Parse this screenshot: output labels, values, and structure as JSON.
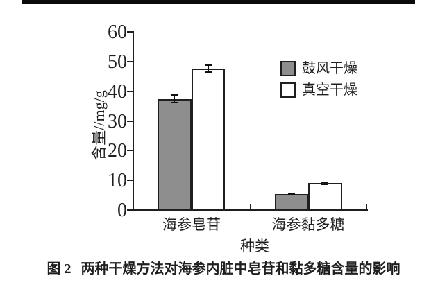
{
  "chart_data": {
    "type": "bar",
    "categories": [
      "海参皂苷",
      "海参黏多糖"
    ],
    "series": [
      {
        "name": "鼓风干燥",
        "fill": "#8e8e8e",
        "values": [
          37.4,
          5.4
        ],
        "errors": [
          1.3,
          0.3
        ]
      },
      {
        "name": "真空干燥",
        "fill": "#ffffff",
        "values": [
          47.6,
          9.0
        ],
        "errors": [
          1.2,
          0.4
        ]
      }
    ],
    "ylabel": "含量//mg/g",
    "xlabel": "种类",
    "ylim": [
      0,
      60
    ],
    "yticks": [
      0,
      10,
      20,
      30,
      40,
      50,
      60
    ],
    "grid": false,
    "legend_position": "upper-right",
    "error_bars": true,
    "axis_color": "#1f1f1f",
    "bar_edge_color": "#1f1f1f"
  },
  "legend": {
    "items": [
      {
        "label": "鼓风干燥",
        "swatch": "#8e8e8e"
      },
      {
        "label": "真空干燥",
        "swatch": "#ffffff"
      }
    ]
  },
  "caption": {
    "prefix": "图 2",
    "text": "两种干燥方法对海参内脏中皂苷和黏多糖含量的影响"
  }
}
